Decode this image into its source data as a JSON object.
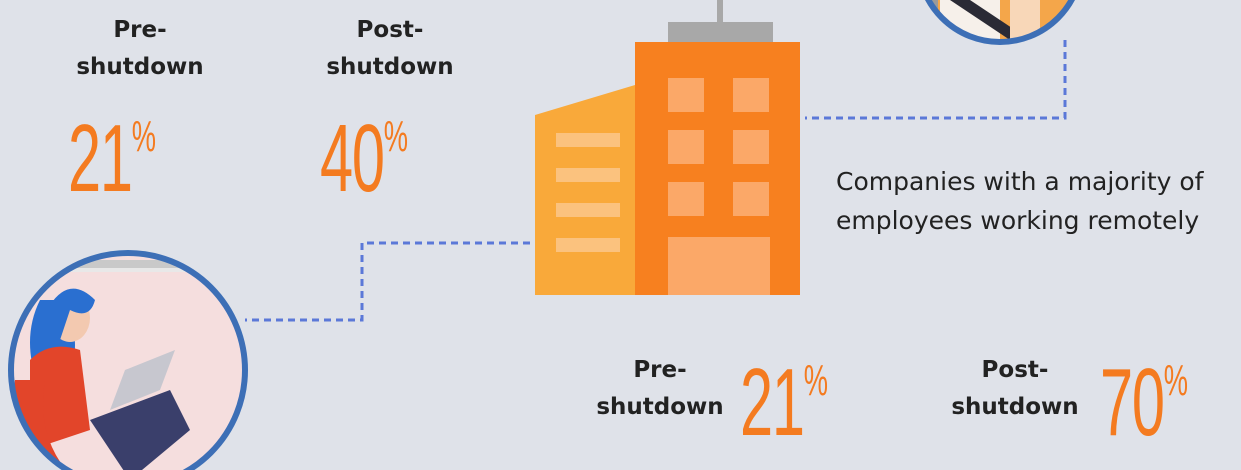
{
  "top_stats": [
    {
      "label": "Pre-shutdown",
      "value": 21,
      "unit": "%"
    },
    {
      "label": "Post-shutdown",
      "value": 40,
      "unit": "%"
    }
  ],
  "caption": "Companies with a majority of employees working remotely",
  "bottom_stats": [
    {
      "label": "Pre-shutdown",
      "value": 21,
      "unit": "%"
    },
    {
      "label": "Post-shutdown",
      "value": 70,
      "unit": "%"
    }
  ]
}
